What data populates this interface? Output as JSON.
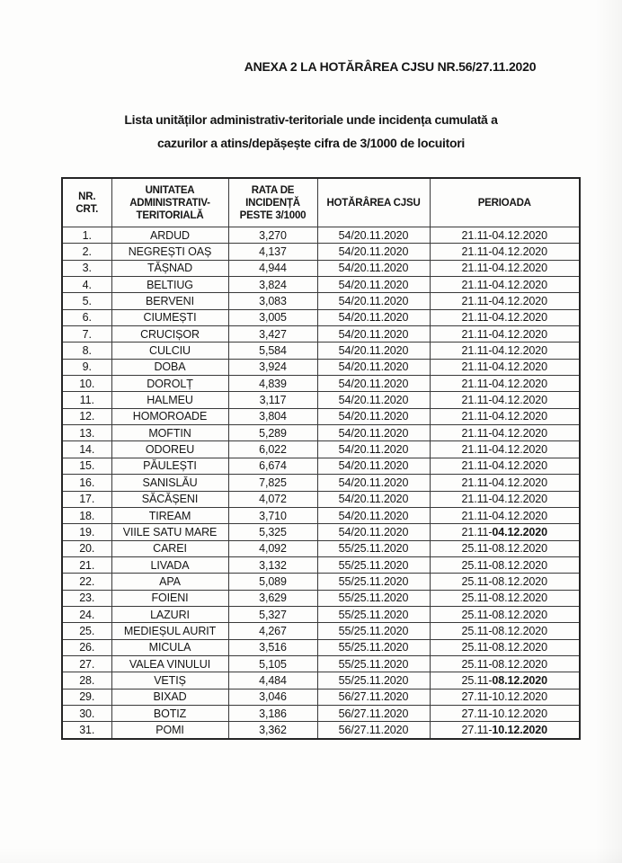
{
  "page": {
    "annex_title": "ANEXA 2 LA HOTĂRÂREA CJSU NR.56/27.11.2020",
    "title_line1": "Lista unităților administrativ-teritoriale unde incidența cumulată a",
    "title_line2": "cazurilor a atins/depășește cifra de 3/1000 de locuitori"
  },
  "colors": {
    "text": "#151515",
    "border": "#3a3a3a",
    "background": "#fdfdfc"
  },
  "table": {
    "columns": [
      {
        "key": "nr",
        "label": "NR.\nCRT."
      },
      {
        "key": "uat",
        "label": "UNITATEA\nADMINISTRATIV-\nTERITORIALĂ"
      },
      {
        "key": "rata",
        "label": "RATA DE\nINCIDENȚĂ\nPESTE 3/1000"
      },
      {
        "key": "hotarare",
        "label": "HOTĂRÂREA CJSU"
      },
      {
        "key": "perioada",
        "label": "PERIOADA"
      }
    ],
    "rows": [
      {
        "nr": "1.",
        "uat": "ARDUD",
        "rata": "3,270",
        "hotarare": "54/20.11.2020",
        "perioada": "21.11-04.12.2020",
        "perioada_bold": ""
      },
      {
        "nr": "2.",
        "uat": "NEGREȘTI OAȘ",
        "rata": "4,137",
        "hotarare": "54/20.11.2020",
        "perioada": "21.11-04.12.2020",
        "perioada_bold": ""
      },
      {
        "nr": "3.",
        "uat": "TĂȘNAD",
        "rata": "4,944",
        "hotarare": "54/20.11.2020",
        "perioada": "21.11-04.12.2020",
        "perioada_bold": ""
      },
      {
        "nr": "4.",
        "uat": "BELTIUG",
        "rata": "3,824",
        "hotarare": "54/20.11.2020",
        "perioada": "21.11-04.12.2020",
        "perioada_bold": ""
      },
      {
        "nr": "5.",
        "uat": "BERVENI",
        "rata": "3,083",
        "hotarare": "54/20.11.2020",
        "perioada": "21.11-04.12.2020",
        "perioada_bold": ""
      },
      {
        "nr": "6.",
        "uat": "CIUMEȘTI",
        "rata": "3,005",
        "hotarare": "54/20.11.2020",
        "perioada": "21.11-04.12.2020",
        "perioada_bold": ""
      },
      {
        "nr": "7.",
        "uat": "CRUCIȘOR",
        "rata": "3,427",
        "hotarare": "54/20.11.2020",
        "perioada": "21.11-04.12.2020",
        "perioada_bold": ""
      },
      {
        "nr": "8.",
        "uat": "CULCIU",
        "rata": "5,584",
        "hotarare": "54/20.11.2020",
        "perioada": "21.11-04.12.2020",
        "perioada_bold": ""
      },
      {
        "nr": "9.",
        "uat": "DOBA",
        "rata": "3,924",
        "hotarare": "54/20.11.2020",
        "perioada": "21.11-04.12.2020",
        "perioada_bold": ""
      },
      {
        "nr": "10.",
        "uat": "DOROLȚ",
        "rata": "4,839",
        "hotarare": "54/20.11.2020",
        "perioada": "21.11-04.12.2020",
        "perioada_bold": ""
      },
      {
        "nr": "11.",
        "uat": "HALMEU",
        "rata": "3,117",
        "hotarare": "54/20.11.2020",
        "perioada": "21.11-04.12.2020",
        "perioada_bold": ""
      },
      {
        "nr": "12.",
        "uat": "HOMOROADE",
        "rata": "3,804",
        "hotarare": "54/20.11.2020",
        "perioada": "21.11-04.12.2020",
        "perioada_bold": ""
      },
      {
        "nr": "13.",
        "uat": "MOFTIN",
        "rata": "5,289",
        "hotarare": "54/20.11.2020",
        "perioada": "21.11-04.12.2020",
        "perioada_bold": ""
      },
      {
        "nr": "14.",
        "uat": "ODOREU",
        "rata": "6,022",
        "hotarare": "54/20.11.2020",
        "perioada": "21.11-04.12.2020",
        "perioada_bold": ""
      },
      {
        "nr": "15.",
        "uat": "PĂULEȘTI",
        "rata": "6,674",
        "hotarare": "54/20.11.2020",
        "perioada": "21.11-04.12.2020",
        "perioada_bold": ""
      },
      {
        "nr": "16.",
        "uat": "SANISLĂU",
        "rata": "7,825",
        "hotarare": "54/20.11.2020",
        "perioada": "21.11-04.12.2020",
        "perioada_bold": ""
      },
      {
        "nr": "17.",
        "uat": "SĂCĂȘENI",
        "rata": "4,072",
        "hotarare": "54/20.11.2020",
        "perioada": "21.11-04.12.2020",
        "perioada_bold": ""
      },
      {
        "nr": "18.",
        "uat": "TIREAM",
        "rata": "3,710",
        "hotarare": "54/20.11.2020",
        "perioada": "21.11-04.12.2020",
        "perioada_bold": ""
      },
      {
        "nr": "19.",
        "uat": "VIILE SATU MARE",
        "rata": "5,325",
        "hotarare": "54/20.11.2020",
        "perioada": "21.11-",
        "perioada_bold": "04.12.2020"
      },
      {
        "nr": "20.",
        "uat": "CAREI",
        "rata": "4,092",
        "hotarare": "55/25.11.2020",
        "perioada": "25.11-08.12.2020",
        "perioada_bold": ""
      },
      {
        "nr": "21.",
        "uat": "LIVADA",
        "rata": "3,132",
        "hotarare": "55/25.11.2020",
        "perioada": "25.11-08.12.2020",
        "perioada_bold": ""
      },
      {
        "nr": "22.",
        "uat": "APA",
        "rata": "5,089",
        "hotarare": "55/25.11.2020",
        "perioada": "25.11-08.12.2020",
        "perioada_bold": ""
      },
      {
        "nr": "23.",
        "uat": "FOIENI",
        "rata": "3,629",
        "hotarare": "55/25.11.2020",
        "perioada": "25.11-08.12.2020",
        "perioada_bold": ""
      },
      {
        "nr": "24.",
        "uat": "LAZURI",
        "rata": "5,327",
        "hotarare": "55/25.11.2020",
        "perioada": "25.11-08.12.2020",
        "perioada_bold": ""
      },
      {
        "nr": "25.",
        "uat": "MEDIEȘUL AURIT",
        "rata": "4,267",
        "hotarare": "55/25.11.2020",
        "perioada": "25.11-08.12.2020",
        "perioada_bold": ""
      },
      {
        "nr": "26.",
        "uat": "MICULA",
        "rata": "3,516",
        "hotarare": "55/25.11.2020",
        "perioada": "25.11-08.12.2020",
        "perioada_bold": ""
      },
      {
        "nr": "27.",
        "uat": "VALEA VINULUI",
        "rata": "5,105",
        "hotarare": "55/25.11.2020",
        "perioada": "25.11-08.12.2020",
        "perioada_bold": ""
      },
      {
        "nr": "28.",
        "uat": "VETIȘ",
        "rata": "4,484",
        "hotarare": "55/25.11.2020",
        "perioada": "25.11-",
        "perioada_bold": "08.12.2020"
      },
      {
        "nr": "29.",
        "uat": "BIXAD",
        "rata": "3,046",
        "hotarare": "56/27.11.2020",
        "perioada": "27.11-10.12.2020",
        "perioada_bold": ""
      },
      {
        "nr": "30.",
        "uat": "BOTIZ",
        "rata": "3,186",
        "hotarare": "56/27.11.2020",
        "perioada": "27.11-10.12.2020",
        "perioada_bold": ""
      },
      {
        "nr": "31.",
        "uat": "POMI",
        "rata": "3,362",
        "hotarare": "56/27.11.2020",
        "perioada": "27.11-",
        "perioada_bold": "10.12.2020"
      }
    ]
  }
}
